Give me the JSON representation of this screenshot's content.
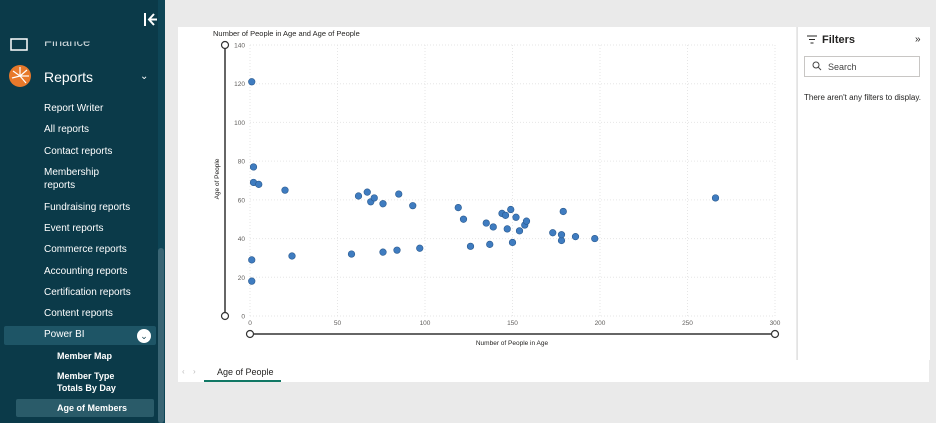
{
  "sidebar": {
    "finance_label": "Finance",
    "reports_label": "Reports",
    "report_items": [
      {
        "label": "Report Writer"
      },
      {
        "label": "All reports"
      },
      {
        "label": "Contact reports"
      },
      {
        "label": "Membership reports"
      },
      {
        "label": "Fundraising reports"
      },
      {
        "label": "Event reports"
      },
      {
        "label": "Commerce reports"
      },
      {
        "label": "Accounting reports"
      },
      {
        "label": "Certification reports"
      },
      {
        "label": "Content reports"
      }
    ],
    "powerbi_label": "Power BI",
    "powerbi_items": [
      {
        "label": "Member Map"
      },
      {
        "label": "Member Type Totals By Day"
      },
      {
        "label": "Age of Members"
      }
    ]
  },
  "filters": {
    "title": "Filters",
    "search_placeholder": "Search",
    "empty_message": "There aren't any filters to display."
  },
  "tabs": [
    {
      "label": "Age of People"
    }
  ],
  "chart_data": {
    "type": "scatter",
    "title": "Number of People in Age and Age of People",
    "xlabel": "Number of People in Age",
    "ylabel": "Age of People",
    "xlim": [
      0,
      300
    ],
    "ylim": [
      0,
      140
    ],
    "x_ticks": [
      0,
      50,
      100,
      150,
      200,
      250,
      300
    ],
    "y_ticks": [
      0,
      20,
      40,
      60,
      80,
      100,
      120,
      140
    ],
    "grid": true,
    "point_color": "#3f7cc0",
    "points": [
      [
        1,
        121
      ],
      [
        2,
        77
      ],
      [
        2,
        69
      ],
      [
        5,
        68
      ],
      [
        20,
        65
      ],
      [
        1,
        29
      ],
      [
        1,
        18
      ],
      [
        24,
        31
      ],
      [
        58,
        32
      ],
      [
        62,
        62
      ],
      [
        67,
        64
      ],
      [
        69,
        59
      ],
      [
        71,
        61
      ],
      [
        76,
        58
      ],
      [
        76,
        33
      ],
      [
        84,
        34
      ],
      [
        85,
        63
      ],
      [
        93,
        57
      ],
      [
        97,
        35
      ],
      [
        119,
        56
      ],
      [
        122,
        50
      ],
      [
        126,
        36
      ],
      [
        135,
        48
      ],
      [
        137,
        37
      ],
      [
        139,
        46
      ],
      [
        144,
        53
      ],
      [
        146,
        52
      ],
      [
        147,
        45
      ],
      [
        149,
        55
      ],
      [
        150,
        38
      ],
      [
        152,
        51
      ],
      [
        154,
        44
      ],
      [
        157,
        47
      ],
      [
        158,
        49
      ],
      [
        173,
        43
      ],
      [
        178,
        39
      ],
      [
        178,
        42
      ],
      [
        179,
        54
      ],
      [
        186,
        41
      ],
      [
        197,
        40
      ],
      [
        266,
        61
      ]
    ]
  }
}
